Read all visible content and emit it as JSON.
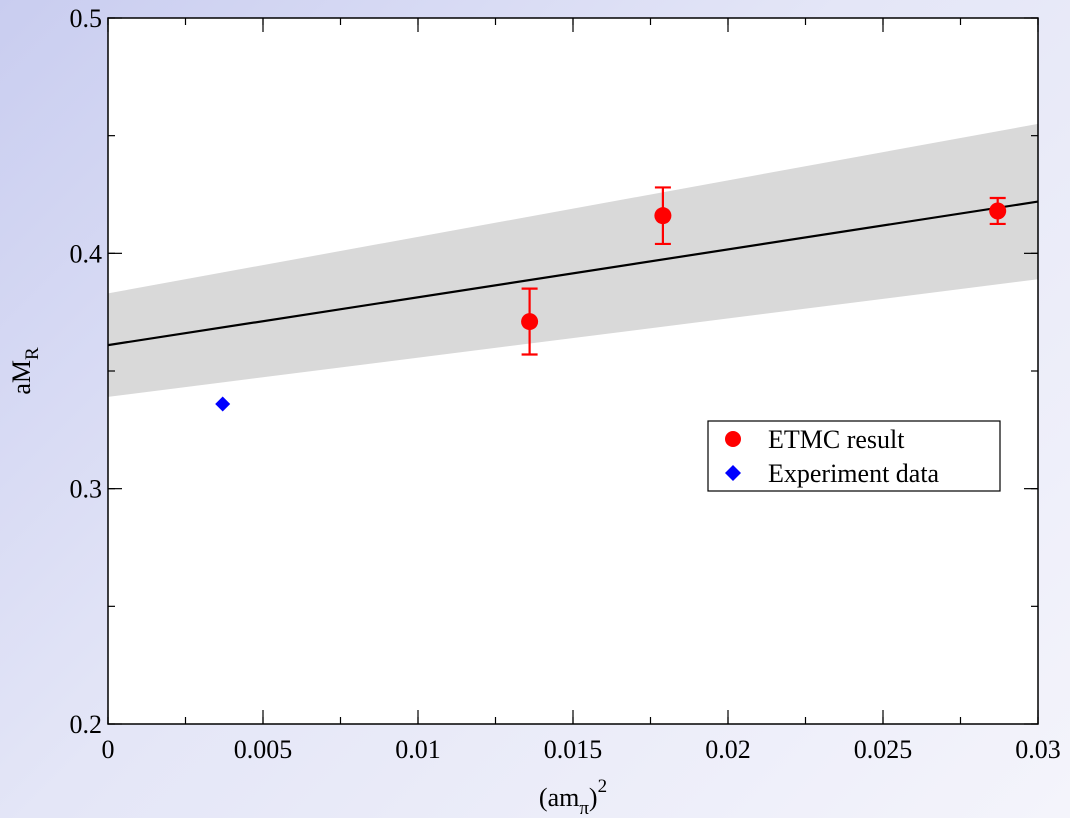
{
  "chart_data": {
    "type": "scatter",
    "title": "",
    "xlabel": {
      "base": "(am",
      "sub": "π",
      "close": ")",
      "sup": "2"
    },
    "ylabel": {
      "base": "aM",
      "sub": "R"
    },
    "xlim": [
      0,
      0.03
    ],
    "ylim": [
      0.2,
      0.5
    ],
    "x_ticks": [
      {
        "value": 0,
        "label": "0"
      },
      {
        "value": 0.005,
        "label": "0.005"
      },
      {
        "value": 0.01,
        "label": "0.01"
      },
      {
        "value": 0.015,
        "label": "0.015"
      },
      {
        "value": 0.02,
        "label": "0.02"
      },
      {
        "value": 0.025,
        "label": "0.025"
      },
      {
        "value": 0.03,
        "label": "0.03"
      }
    ],
    "y_ticks": [
      {
        "value": 0.2,
        "label": "0.2"
      },
      {
        "value": 0.3,
        "label": "0.3"
      },
      {
        "value": 0.4,
        "label": "0.4"
      },
      {
        "value": 0.5,
        "label": "0.5"
      }
    ],
    "x_minor_step": 0.0025,
    "y_minor_step": 0.05,
    "grid": false,
    "legend_position": "right",
    "series": [
      {
        "name": "ETMC result",
        "marker": "circle",
        "color": "#ff0000",
        "points": [
          {
            "x": 0.0136,
            "y": 0.371,
            "yerr": 0.014
          },
          {
            "x": 0.0179,
            "y": 0.416,
            "yerr": 0.012
          },
          {
            "x": 0.0287,
            "y": 0.418,
            "yerr": 0.0055
          }
        ]
      },
      {
        "name": "Experiment data",
        "marker": "diamond",
        "color": "#0000ff",
        "points": [
          {
            "x": 0.0037,
            "y": 0.336
          }
        ]
      }
    ],
    "fit": {
      "color": "#000000",
      "band_color": "#d9d9d9",
      "line": [
        {
          "x": 0,
          "y": 0.361
        },
        {
          "x": 0.03,
          "y": 0.422
        }
      ],
      "band_upper": [
        {
          "x": 0,
          "y": 0.383
        },
        {
          "x": 0.03,
          "y": 0.455
        }
      ],
      "band_lower": [
        {
          "x": 0,
          "y": 0.339
        },
        {
          "x": 0.03,
          "y": 0.389
        }
      ]
    }
  }
}
